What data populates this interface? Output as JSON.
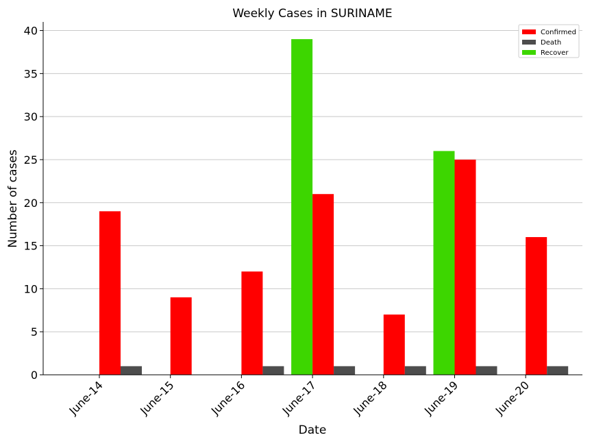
{
  "chart_data": {
    "type": "bar",
    "title": "Weekly Cases in SURINAME",
    "xlabel": "Date",
    "ylabel": "Number of cases",
    "categories": [
      "June-14",
      "June-15",
      "June-16",
      "June-17",
      "June-18",
      "June-19",
      "June-20"
    ],
    "series": [
      {
        "name": "Recover",
        "color": "#3dd600",
        "values": [
          0,
          0,
          0,
          39,
          0,
          26,
          0
        ]
      },
      {
        "name": "Confirmed",
        "color": "#ff0000",
        "values": [
          19,
          9,
          12,
          21,
          7,
          25,
          16
        ]
      },
      {
        "name": "Death",
        "color": "#4d4d4d",
        "values": [
          1,
          0,
          1,
          1,
          1,
          1,
          1
        ]
      }
    ],
    "legend_order": [
      "Confirmed",
      "Death",
      "Recover"
    ],
    "ylim": [
      0,
      41
    ],
    "yticks": [
      0,
      5,
      10,
      15,
      20,
      25,
      30,
      35,
      40
    ],
    "grid": "horizontal",
    "legend_position": "top-right"
  }
}
